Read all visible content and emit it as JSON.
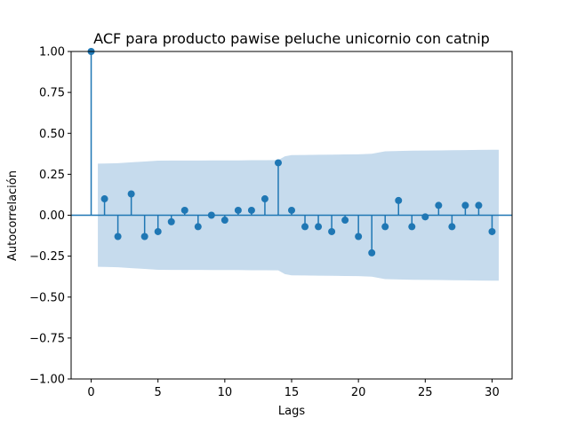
{
  "chart_data": {
    "type": "scatter",
    "title": "ACF para producto pawise peluche unicornio con catnip",
    "xlabel": "Lags",
    "ylabel": "Autocorrelación",
    "xlim": [
      -1.5,
      31.5
    ],
    "ylim": [
      -1.0,
      1.0
    ],
    "x_ticks": [
      0,
      5,
      10,
      15,
      20,
      25,
      30
    ],
    "x_tick_labels": [
      "0",
      "5",
      "10",
      "15",
      "20",
      "25",
      "30"
    ],
    "y_ticks": [
      -1.0,
      -0.75,
      -0.5,
      -0.25,
      0.0,
      0.25,
      0.5,
      0.75,
      1.0
    ],
    "y_tick_labels": [
      "−1.00",
      "−0.75",
      "−0.50",
      "−0.25",
      "0.00",
      "0.25",
      "0.50",
      "0.75",
      "1.00"
    ],
    "grid": false,
    "legend": false,
    "series": [
      {
        "lags": [
          0,
          1,
          2,
          3,
          4,
          5,
          6,
          7,
          8,
          9,
          10,
          11,
          12,
          13,
          14,
          15,
          16,
          17,
          18,
          19,
          20,
          21,
          22,
          23,
          24,
          25,
          26,
          27,
          28,
          29,
          30
        ],
        "values": [
          1.0,
          0.1,
          -0.13,
          0.13,
          -0.13,
          -0.1,
          -0.04,
          0.03,
          -0.07,
          0.0,
          -0.03,
          0.03,
          0.03,
          0.1,
          0.32,
          0.03,
          -0.07,
          -0.07,
          -0.1,
          -0.03,
          -0.13,
          -0.23,
          -0.07,
          0.09,
          -0.07,
          -0.01,
          0.06,
          -0.07,
          0.06,
          0.06,
          -0.1
        ]
      }
    ],
    "confidence_band": {
      "lags": [
        0.5,
        1,
        2,
        3,
        4,
        5,
        6,
        7,
        8,
        9,
        10,
        11,
        12,
        13,
        14,
        14.5,
        15,
        16,
        17,
        18,
        19,
        20,
        21,
        21.5,
        22,
        23,
        24,
        25,
        26,
        27,
        28,
        29,
        30,
        30.5
      ],
      "upper": [
        0.315,
        0.316,
        0.318,
        0.323,
        0.328,
        0.333,
        0.334,
        0.334,
        0.334,
        0.335,
        0.335,
        0.335,
        0.336,
        0.336,
        0.337,
        0.36,
        0.367,
        0.368,
        0.369,
        0.37,
        0.371,
        0.372,
        0.375,
        0.383,
        0.39,
        0.392,
        0.394,
        0.395,
        0.396,
        0.397,
        0.398,
        0.399,
        0.4,
        0.4
      ]
    },
    "colors": {
      "stem": "#1f77b4",
      "marker": "#1f77b4",
      "band": "#c6dbed",
      "zero_line": "#1f77b4"
    }
  }
}
